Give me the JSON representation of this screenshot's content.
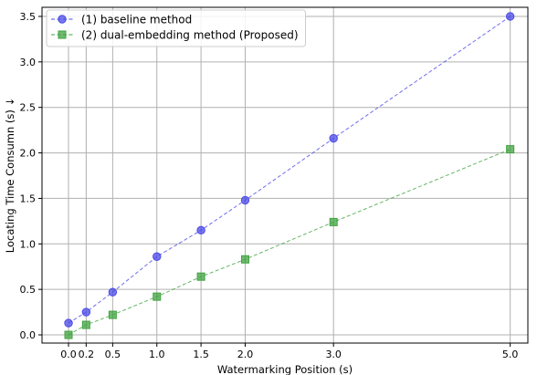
{
  "chart_data": {
    "type": "line",
    "title": "",
    "xlabel": "Watermarking Position (s)",
    "ylabel": "Locating Time Consumn (s) ↓",
    "xlim": [
      -0.3,
      5.2
    ],
    "ylim": [
      -0.09,
      3.6
    ],
    "x_ticks": [
      0.0,
      0.2,
      0.5,
      1.0,
      1.5,
      2.0,
      3.0,
      5.0
    ],
    "x_tick_labels": [
      "0.0",
      "0.2",
      "0.5",
      "1.0",
      "1.5",
      "2.0",
      "3.0",
      "5.0"
    ],
    "y_ticks": [
      0.0,
      0.5,
      1.0,
      1.5,
      2.0,
      2.5,
      3.0,
      3.5
    ],
    "y_tick_labels": [
      "0.0",
      "0.5",
      "1.0",
      "1.5",
      "2.0",
      "2.5",
      "3.0",
      "3.5"
    ],
    "grid": true,
    "legend_position": "top-left",
    "x": [
      0.0,
      0.2,
      0.5,
      1.0,
      1.5,
      2.0,
      3.0,
      5.0
    ],
    "series": [
      {
        "name": "(1) baseline method",
        "values": [
          0.13,
          0.25,
          0.47,
          0.86,
          1.15,
          1.48,
          2.16,
          3.5
        ],
        "color": "#4a4ae8",
        "marker": "circle"
      },
      {
        "name": "(2) dual-embedding method (Proposed)",
        "values": [
          0.0,
          0.11,
          0.22,
          0.42,
          0.64,
          0.83,
          1.24,
          2.04
        ],
        "color": "#3fa33f",
        "marker": "square"
      }
    ]
  }
}
